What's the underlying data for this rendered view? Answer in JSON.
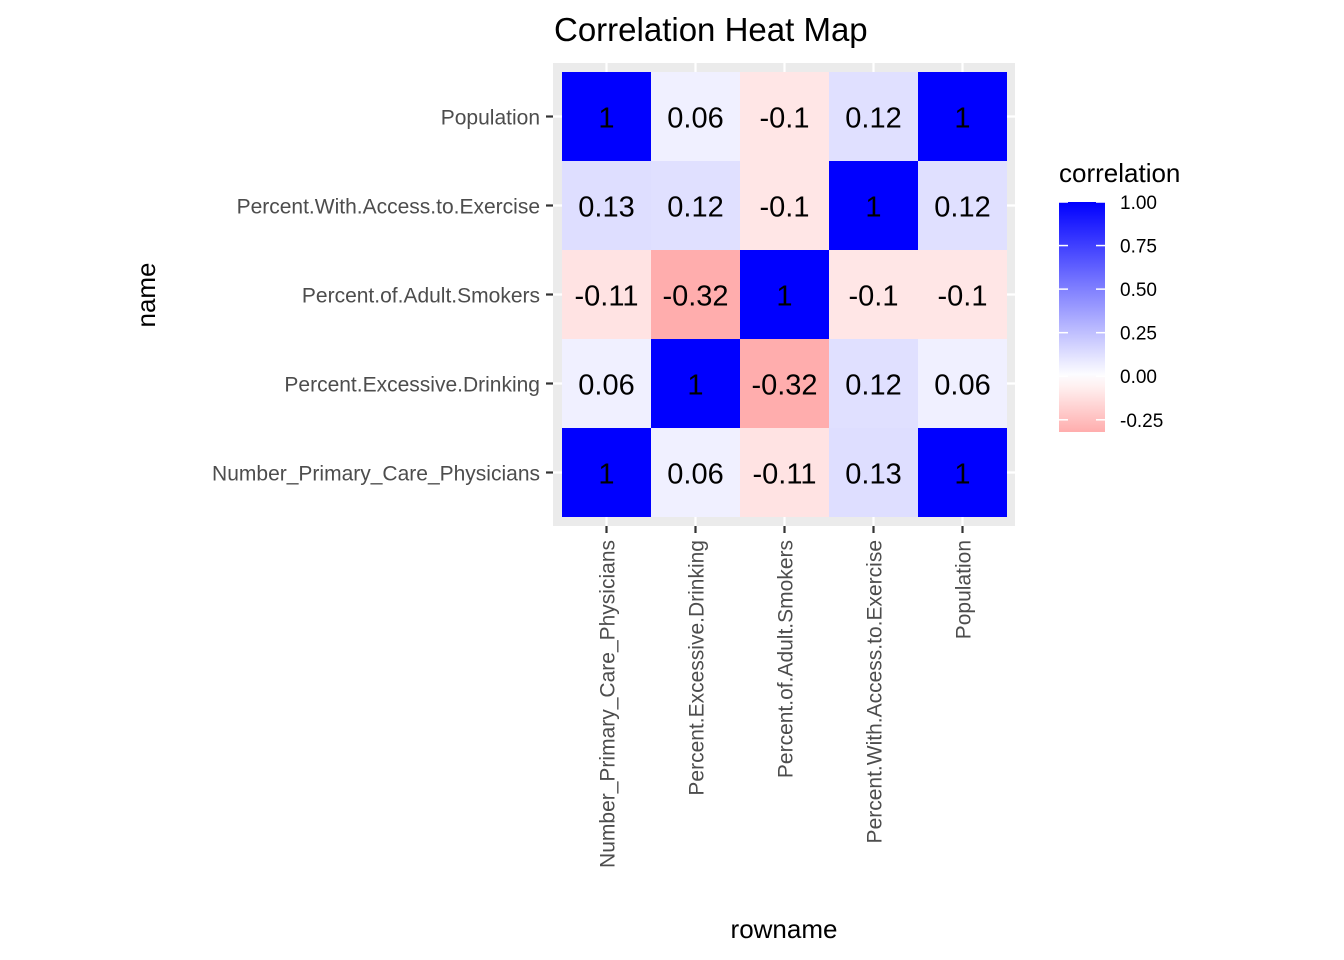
{
  "chart_data": {
    "type": "heatmap",
    "title": "Correlation Heat Map",
    "xlabel": "rowname",
    "ylabel": "name",
    "x_categories": [
      "Number_Primary_Care_Physicians",
      "Percent.Excessive.Drinking",
      "Percent.of.Adult.Smokers",
      "Percent.With.Access.to.Exercise",
      "Population"
    ],
    "y_categories": [
      "Number_Primary_Care_Physicians",
      "Percent.Excessive.Drinking",
      "Percent.of.Adult.Smokers",
      "Percent.With.Access.to.Exercise",
      "Population"
    ],
    "values": [
      [
        1,
        0.06,
        -0.11,
        0.13,
        1
      ],
      [
        0.06,
        1,
        -0.32,
        0.12,
        0.06
      ],
      [
        -0.11,
        -0.32,
        1,
        -0.1,
        -0.1
      ],
      [
        0.13,
        0.12,
        -0.1,
        1,
        0.12
      ],
      [
        1,
        0.06,
        -0.1,
        0.12,
        1
      ]
    ],
    "legend": {
      "title": "correlation",
      "placement": "right",
      "breaks": [
        1.0,
        0.75,
        0.5,
        0.25,
        0.0,
        -0.25
      ],
      "break_labels": [
        "1.00",
        "0.75",
        "0.50",
        "0.25",
        "0.00",
        "-0.25"
      ],
      "range": [
        -0.32,
        1.0
      ]
    },
    "colors": {
      "high": "#0000ff",
      "mid": "#ffffff",
      "low": "#ff0000",
      "panel_bg": "#ebebeb",
      "grid": "#ffffff"
    }
  }
}
